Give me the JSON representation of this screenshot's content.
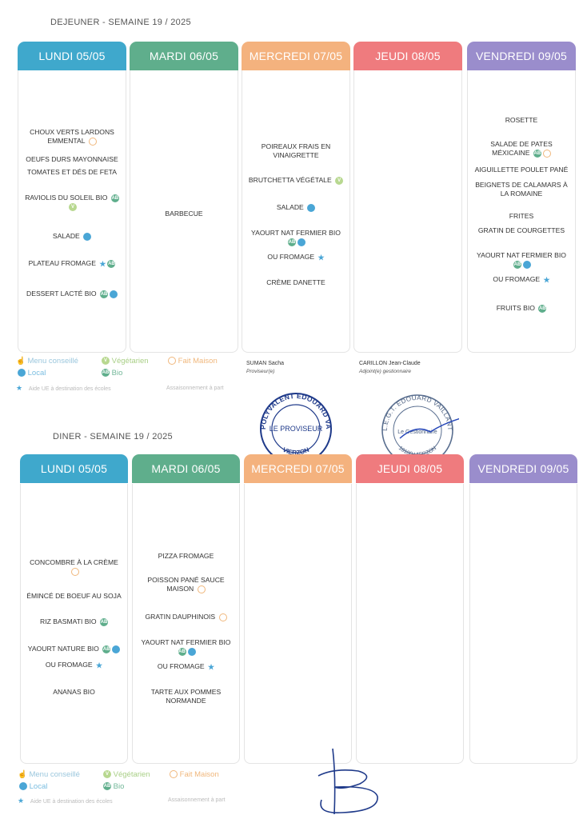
{
  "lunch": {
    "title": "DEJEUNER - SEMAINE 19 / 2025",
    "days": [
      {
        "label": "LUNDI 05/05",
        "color": "#3fa8cc",
        "items": [
          {
            "text": "CHOUX VERTS LARDONS EMMENTAL",
            "badges": [
              "fait-maison"
            ]
          },
          {
            "text": "OEUFS DURS MAYONNAISE",
            "badges": []
          },
          {
            "text": "TOMATES ET DÉS DE FETA",
            "badges": []
          },
          {
            "text": "RAVIOLIS DU SOLEIL BIO",
            "badges": [
              "bio",
              "vegetarien"
            ]
          },
          {
            "text": "SALADE",
            "badges": [
              "local"
            ]
          },
          {
            "text": "PLATEAU FROMAGE",
            "badges": [
              "ue",
              "bio"
            ]
          },
          {
            "text": "DESSERT LACTÉ BIO",
            "badges": [
              "bio",
              "local"
            ]
          }
        ]
      },
      {
        "label": "MARDI 06/05",
        "color": "#5fae8c",
        "items": [
          {
            "text": "BARBECUE",
            "badges": []
          }
        ]
      },
      {
        "label": "MERCREDI 07/05",
        "color": "#f4b27e",
        "items": [
          {
            "text": "POIREAUX FRAIS EN VINAIGRETTE",
            "badges": []
          },
          {
            "text": "BRUTCHETTA VÉGÉTALE",
            "badges": [
              "vegetarien"
            ]
          },
          {
            "text": "SALADE",
            "badges": [
              "local"
            ]
          },
          {
            "text": "YAOURT NAT FERMIER BIO",
            "badges": [
              "bio",
              "local"
            ]
          },
          {
            "text": "OU FROMAGE",
            "badges": [
              "ue"
            ]
          },
          {
            "text": "CRÈME DANETTE",
            "badges": []
          }
        ]
      },
      {
        "label": "JEUDI 08/05",
        "color": "#ef7b7e",
        "items": []
      },
      {
        "label": "VENDREDI 09/05",
        "color": "#9a8dcc",
        "items": [
          {
            "text": "ROSETTE",
            "badges": []
          },
          {
            "text": "SALADE DE PATES MÉXICAINE",
            "badges": [
              "bio",
              "fait-maison"
            ]
          },
          {
            "text": "AIGUILLETTE POULET PANÉ",
            "badges": []
          },
          {
            "text": "BEIGNETS DE CALAMARS À LA ROMAINE",
            "badges": []
          },
          {
            "text": "FRITES",
            "badges": []
          },
          {
            "text": "GRATIN DE COURGETTES",
            "badges": []
          },
          {
            "text": "YAOURT NAT FERMIER BIO",
            "badges": [
              "bio",
              "local"
            ]
          },
          {
            "text": "OU FROMAGE",
            "badges": [
              "ue"
            ]
          },
          {
            "text": "FRUITS BIO",
            "badges": [
              "bio"
            ]
          }
        ]
      }
    ]
  },
  "dinner": {
    "title": "DINER - SEMAINE 19 / 2025",
    "days": [
      {
        "label": "LUNDI 05/05",
        "color": "#3fa8cc",
        "items": [
          {
            "text": "CONCOMBRE À LA CRÈME",
            "badges": [
              "fait-maison"
            ]
          },
          {
            "text": "ÉMINCÉ DE BOEUF AU SOJA",
            "badges": []
          },
          {
            "text": "RIZ BASMATI BIO",
            "badges": [
              "bio"
            ]
          },
          {
            "text": "YAOURT NATURE BIO",
            "badges": [
              "bio",
              "local"
            ]
          },
          {
            "text": "OU FROMAGE",
            "badges": [
              "ue"
            ]
          },
          {
            "text": "ANANAS BIO",
            "badges": []
          }
        ]
      },
      {
        "label": "MARDI 06/05",
        "color": "#5fae8c",
        "items": [
          {
            "text": "PIZZA FROMAGE",
            "badges": []
          },
          {
            "text": "POISSON PANÉ SAUCE MAISON",
            "badges": [
              "fait-maison"
            ]
          },
          {
            "text": "GRATIN DAUPHINOIS",
            "badges": [
              "fait-maison"
            ]
          },
          {
            "text": "YAOURT NAT FERMIER BIO",
            "badges": [
              "bio",
              "local"
            ]
          },
          {
            "text": "OU FROMAGE",
            "badges": [
              "ue"
            ]
          },
          {
            "text": "TARTE AUX POMMES NORMANDE",
            "badges": []
          }
        ]
      },
      {
        "label": "MERCREDI 07/05",
        "color": "#f4b27e",
        "items": []
      },
      {
        "label": "JEUDI 08/05",
        "color": "#ef7b7e",
        "items": []
      },
      {
        "label": "VENDREDI 09/05",
        "color": "#9a8dcc",
        "items": []
      }
    ]
  },
  "legend": {
    "menu_conseille": "Menu conseillé",
    "vegetarien": "Végétarien",
    "fait_maison": "Fait Maison",
    "local": "Local",
    "bio": "Bio",
    "aide_ue": "Aide UE à destination des écoles",
    "assaisonnement": "Assaisonnement à part"
  },
  "signatures": {
    "proviseur_name": "SUMAN Sacha",
    "proviseur_role": "Proviseur(e)",
    "gestionnaire_name": "CARILLON Jean-Claude",
    "gestionnaire_role": "Adjoint(e) gestionnaire",
    "stamp1_top": "LYCEE POLYVALENT EDOUARD VAILLANT",
    "stamp1_center": "LE PROVISEUR",
    "stamp1_bottom": "VIERZON",
    "stamp2_top": "L.E.G.T. EDOUARD VAILLANT",
    "stamp2_center": "Le Gestionnaire",
    "stamp2_bottom": "18100 VIERZON"
  }
}
